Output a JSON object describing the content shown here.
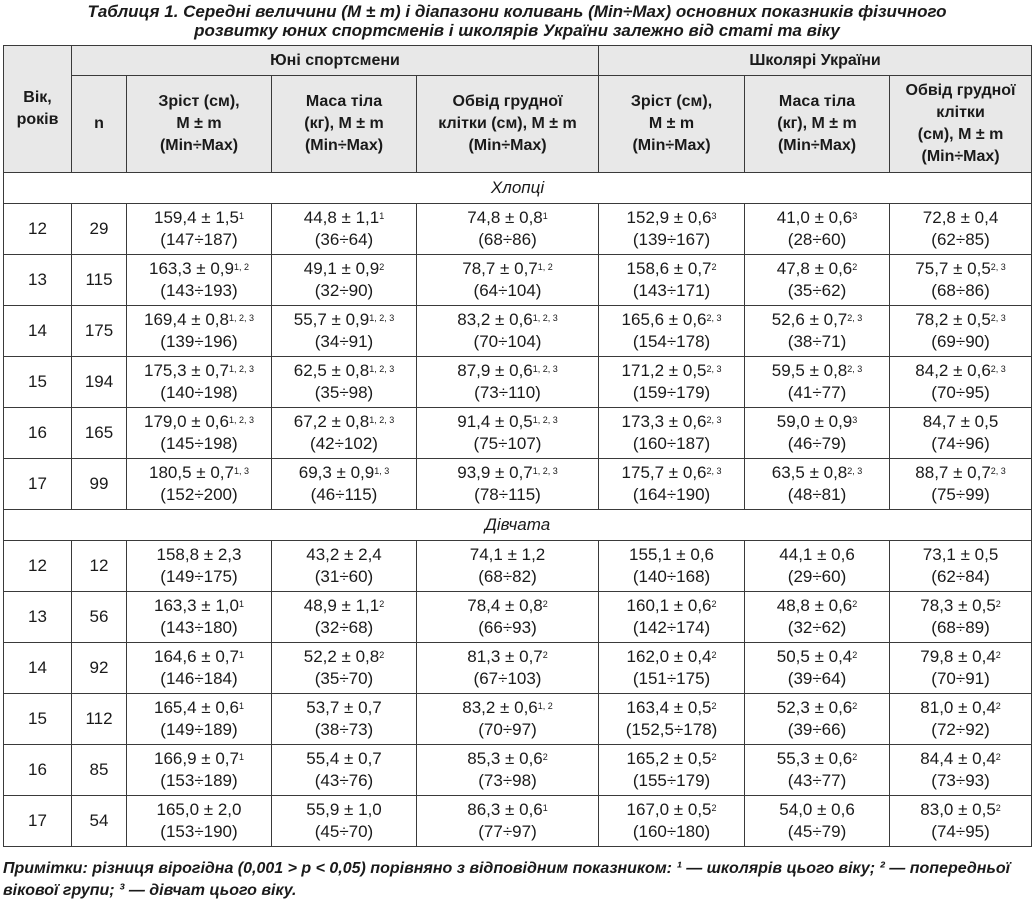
{
  "caption": {
    "line1": "Таблиця 1. Середні величини (M ± m) і діапазони коливань (Min÷Max) основних показників фізичного",
    "line2": "розвитку юних спортсменів і школярів України залежно від статі та віку"
  },
  "header": {
    "age": "Вік, років",
    "group1": "Юні спортсмени",
    "group2": "Школярі України",
    "n": "n",
    "height_l1": "Зріст (см),",
    "height_l2": "M ± m",
    "height_l3": "(Min÷Max)",
    "mass_l1": "Маса тіла",
    "mass_l2": "(кг), M ± m",
    "mass_l3": "(Min÷Max)",
    "chest1_l1": "Обвід грудної",
    "chest1_l2": "клітки (см), M ± m",
    "chest1_l3": "(Min÷Max)",
    "chest2_l1": "Обвід грудної",
    "chest2_l2": "клітки",
    "chest2_l3": "(см), M ± m",
    "chest2_l4": "(Min÷Max)"
  },
  "sections": [
    {
      "title": "Хлопці",
      "rows": [
        {
          "age": "12",
          "n": "29",
          "cells": [
            {
              "v": "159,4 ± 1,5",
              "s": "1",
              "r": "(147÷187)"
            },
            {
              "v": "44,8 ± 1,1",
              "s": "1",
              "r": "(36÷64)"
            },
            {
              "v": "74,8 ± 0,8",
              "s": "1",
              "r": "(68÷86)"
            },
            {
              "v": "152,9 ± 0,6",
              "s": "3",
              "r": "(139÷167)"
            },
            {
              "v": "41,0 ± 0,6",
              "s": "3",
              "r": "(28÷60)"
            },
            {
              "v": "72,8 ± 0,4",
              "s": "",
              "r": "(62÷85)"
            }
          ]
        },
        {
          "age": "13",
          "n": "115",
          "cells": [
            {
              "v": "163,3 ± 0,9",
              "s": "1, 2",
              "r": "(143÷193)"
            },
            {
              "v": "49,1 ± 0,9",
              "s": "2",
              "r": "(32÷90)"
            },
            {
              "v": "78,7 ± 0,7",
              "s": "1, 2",
              "r": "(64÷104)"
            },
            {
              "v": "158,6 ± 0,7",
              "s": "2",
              "r": "(143÷171)"
            },
            {
              "v": "47,8 ± 0,6",
              "s": "2",
              "r": "(35÷62)"
            },
            {
              "v": "75,7 ± 0,5",
              "s": "2, 3",
              "r": "(68÷86)"
            }
          ]
        },
        {
          "age": "14",
          "n": "175",
          "cells": [
            {
              "v": "169,4 ± 0,8",
              "s": "1, 2, 3",
              "r": "(139÷196)"
            },
            {
              "v": "55,7 ± 0,9",
              "s": "1, 2, 3",
              "r": "(34÷91)"
            },
            {
              "v": "83,2 ± 0,6",
              "s": "1, 2, 3",
              "r": "(70÷104)"
            },
            {
              "v": "165,6 ± 0,6",
              "s": "2, 3",
              "r": "(154÷178)"
            },
            {
              "v": "52,6 ± 0,7",
              "s": "2, 3",
              "r": "(38÷71)"
            },
            {
              "v": "78,2 ± 0,5",
              "s": "2, 3",
              "r": "(69÷90)"
            }
          ]
        },
        {
          "age": "15",
          "n": "194",
          "cells": [
            {
              "v": "175,3 ± 0,7",
              "s": "1, 2, 3",
              "r": "(140÷198)"
            },
            {
              "v": "62,5 ± 0,8",
              "s": "1, 2, 3",
              "r": "(35÷98)"
            },
            {
              "v": "87,9 ± 0,6",
              "s": "1, 2, 3",
              "r": "(73÷110)"
            },
            {
              "v": "171,2 ± 0,5",
              "s": "2, 3",
              "r": "(159÷179)"
            },
            {
              "v": "59,5 ± 0,8",
              "s": "2, 3",
              "r": "(41÷77)"
            },
            {
              "v": "84,2 ± 0,6",
              "s": "2, 3",
              "r": "(70÷95)"
            }
          ]
        },
        {
          "age": "16",
          "n": "165",
          "cells": [
            {
              "v": "179,0 ± 0,6",
              "s": "1, 2, 3",
              "r": "(145÷198)"
            },
            {
              "v": "67,2 ± 0,8",
              "s": "1, 2, 3",
              "r": "(42÷102)"
            },
            {
              "v": "91,4 ± 0,5",
              "s": "1, 2, 3",
              "r": "(75÷107)"
            },
            {
              "v": "173,3 ± 0,6",
              "s": "2, 3",
              "r": "(160÷187)"
            },
            {
              "v": "59,0 ± 0,9",
              "s": "3",
              "r": "(46÷79)"
            },
            {
              "v": "84,7 ± 0,5",
              "s": "",
              "r": "(74÷96)"
            }
          ]
        },
        {
          "age": "17",
          "n": "99",
          "cells": [
            {
              "v": "180,5 ± 0,7",
              "s": "1, 3",
              "r": "(152÷200)"
            },
            {
              "v": "69,3 ± 0,9",
              "s": "1, 3",
              "r": "(46÷115)"
            },
            {
              "v": "93,9 ± 0,7",
              "s": "1, 2, 3",
              "r": "(78÷115)"
            },
            {
              "v": "175,7 ± 0,6",
              "s": "2, 3",
              "r": "(164÷190)"
            },
            {
              "v": "63,5 ± 0,8",
              "s": "2, 3",
              "r": "(48÷81)"
            },
            {
              "v": "88,7 ± 0,7",
              "s": "2, 3",
              "r": "(75÷99)"
            }
          ]
        }
      ]
    },
    {
      "title": "Дівчата",
      "rows": [
        {
          "age": "12",
          "n": "12",
          "cells": [
            {
              "v": "158,8 ± 2,3",
              "s": "",
              "r": "(149÷175)"
            },
            {
              "v": "43,2 ± 2,4",
              "s": "",
              "r": "(31÷60)"
            },
            {
              "v": "74,1 ± 1,2",
              "s": "",
              "r": "(68÷82)"
            },
            {
              "v": "155,1 ± 0,6",
              "s": "",
              "r": "(140÷168)"
            },
            {
              "v": "44,1 ± 0,6",
              "s": "",
              "r": "(29÷60)"
            },
            {
              "v": "73,1 ± 0,5",
              "s": "",
              "r": "(62÷84)"
            }
          ]
        },
        {
          "age": "13",
          "n": "56",
          "cells": [
            {
              "v": "163,3 ± 1,0",
              "s": "1",
              "r": "(143÷180)"
            },
            {
              "v": "48,9 ± 1,1",
              "s": "2",
              "r": "(32÷68)"
            },
            {
              "v": "78,4 ± 0,8",
              "s": "2",
              "r": "(66÷93)"
            },
            {
              "v": "160,1 ± 0,6",
              "s": "2",
              "r": "(142÷174)"
            },
            {
              "v": "48,8 ± 0,6",
              "s": "2",
              "r": "(32÷62)"
            },
            {
              "v": "78,3 ± 0,5",
              "s": "2",
              "r": "(68÷89)"
            }
          ]
        },
        {
          "age": "14",
          "n": "92",
          "cells": [
            {
              "v": "164,6 ± 0,7",
              "s": "1",
              "r": "(146÷184)"
            },
            {
              "v": "52,2 ± 0,8",
              "s": "2",
              "r": "(35÷70)"
            },
            {
              "v": "81,3 ± 0,7",
              "s": "2",
              "r": "(67÷103)"
            },
            {
              "v": "162,0 ± 0,4",
              "s": "2",
              "r": "(151÷175)"
            },
            {
              "v": "50,5 ± 0,4",
              "s": "2",
              "r": "(39÷64)"
            },
            {
              "v": "79,8 ± 0,4",
              "s": "2",
              "r": "(70÷91)"
            }
          ]
        },
        {
          "age": "15",
          "n": "112",
          "cells": [
            {
              "v": "165,4 ± 0,6",
              "s": "1",
              "r": "(149÷189)"
            },
            {
              "v": "53,7 ± 0,7",
              "s": "",
              "r": "(38÷73)"
            },
            {
              "v": "83,2 ± 0,6",
              "s": "1, 2",
              "r": "(70÷97)"
            },
            {
              "v": "163,4 ± 0,5",
              "s": "2",
              "r": "(152,5÷178)"
            },
            {
              "v": "52,3 ± 0,6",
              "s": "2",
              "r": "(39÷66)"
            },
            {
              "v": "81,0 ± 0,4",
              "s": "2",
              "r": "(72÷92)"
            }
          ]
        },
        {
          "age": "16",
          "n": "85",
          "cells": [
            {
              "v": "166,9 ± 0,7",
              "s": "1",
              "r": "(153÷189)"
            },
            {
              "v": "55,4 ± 0,7",
              "s": "",
              "r": "(43÷76)"
            },
            {
              "v": "85,3 ± 0,6",
              "s": "2",
              "r": "(73÷98)"
            },
            {
              "v": "165,2 ± 0,5",
              "s": "2",
              "r": "(155÷179)"
            },
            {
              "v": "55,3 ± 0,6",
              "s": "2",
              "r": "(43÷77)"
            },
            {
              "v": "84,4 ± 0,4",
              "s": "2",
              "r": "(73÷93)"
            }
          ]
        },
        {
          "age": "17",
          "n": "54",
          "cells": [
            {
              "v": "165,0 ± 2,0",
              "s": "",
              "r": "(153÷190)"
            },
            {
              "v": "55,9 ± 1,0",
              "s": "",
              "r": "(45÷70)"
            },
            {
              "v": "86,3 ± 0,6",
              "s": "1",
              "r": "(77÷97)"
            },
            {
              "v": "167,0 ± 0,5",
              "s": "2",
              "r": "(160÷180)"
            },
            {
              "v": "54,0 ± 0,6",
              "s": "",
              "r": "(45÷79)"
            },
            {
              "v": "83,0 ± 0,5",
              "s": "2",
              "r": "(74÷95)"
            }
          ]
        }
      ]
    }
  ],
  "note": "Примітки: різниця вірогідна (0,001 > p < 0,05) порівняно з відповідним показником: ¹ — школярів цього віку; ² — попередньої вікової групи; ³ — дівчат цього віку."
}
